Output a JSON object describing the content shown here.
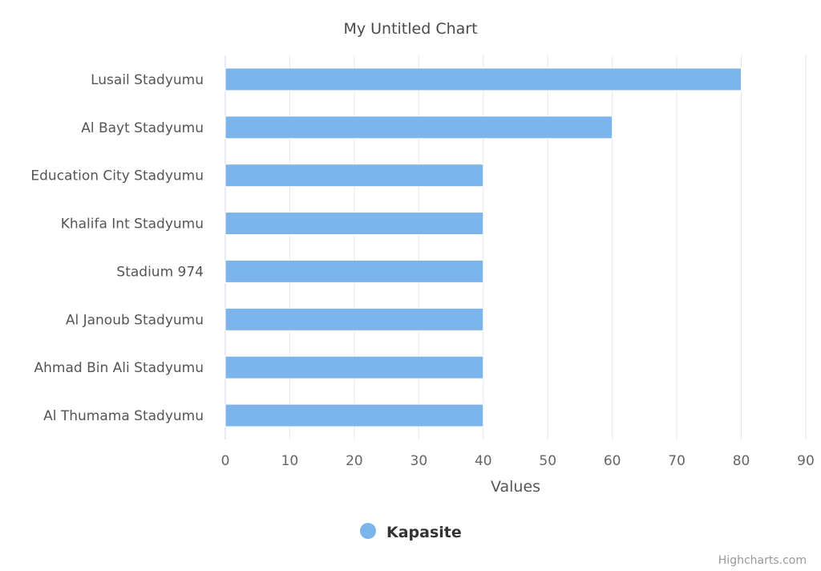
{
  "chart_data": {
    "type": "bar",
    "orientation": "horizontal",
    "title": "My Untitled Chart",
    "categories": [
      "Lusail Stadyumu",
      "Al Bayt Stadyumu",
      "Education City Stadyumu",
      "Khalifa Int Stadyumu",
      "Stadium 974",
      "Al Janoub Stadyumu",
      "Ahmad Bin Ali Stadyumu",
      "Al Thumama Stadyumu"
    ],
    "series": [
      {
        "name": "Kapasite",
        "values": [
          80,
          60,
          40,
          40,
          40,
          40,
          40,
          40
        ],
        "color": "#7cb5ec"
      }
    ],
    "xlabel": "",
    "ylabel": "Values",
    "ylim": [
      0,
      90
    ],
    "ticks": [
      0,
      10,
      20,
      30,
      40,
      50,
      60,
      70,
      80,
      90
    ],
    "grid": true,
    "legend_position": "bottom-center"
  },
  "credits": "Highcharts.com",
  "colors": {
    "grid": "#e6e6e6",
    "axis_line": "#ccd6eb"
  }
}
